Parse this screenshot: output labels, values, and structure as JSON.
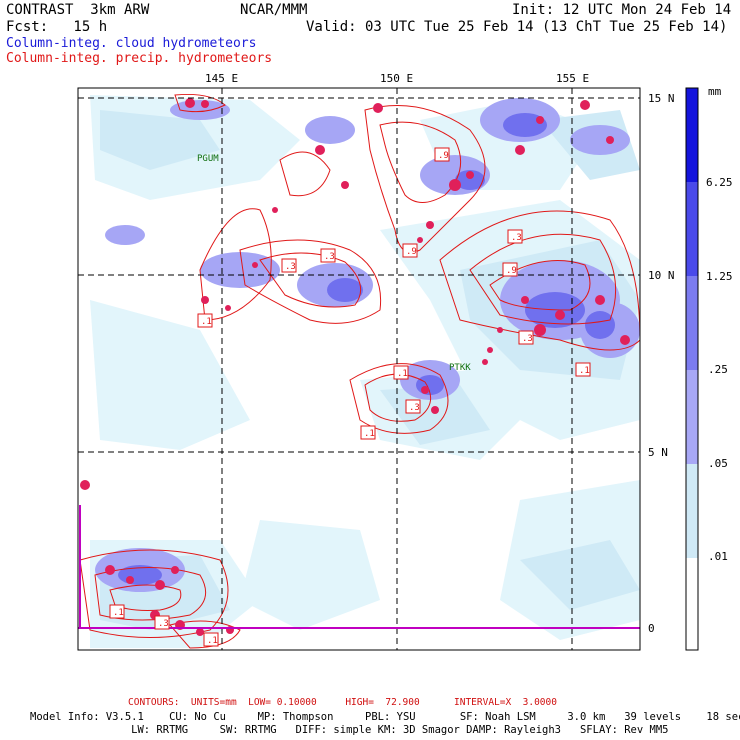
{
  "header": {
    "model": "CONTRAST  3km ARW",
    "org": "NCAR/MMM",
    "init": "Init: 12 UTC Mon 24 Feb 14",
    "fcst": "Fcst:   15 h",
    "valid": "Valid: 03 UTC Tue 25 Feb 14 (13 ChT Tue 25 Feb 14)"
  },
  "legend": {
    "cloud": "Column-integ. cloud hydrometeors",
    "precip": "Column-integ. precip. hydrometeors"
  },
  "axes": {
    "lon_ticks": [
      "145 E",
      "150 E",
      "155 E"
    ],
    "lat_ticks": [
      "15 N",
      "10 N",
      "5 N",
      "0"
    ]
  },
  "colorbar": {
    "units": "mm",
    "labels": [
      "6.25",
      "1.25",
      ".25",
      ".05",
      ".01"
    ],
    "colors": [
      "#1414dc",
      "#4a4aea",
      "#7c7cf0",
      "#a8a8f6",
      "#cfe9f6",
      "#e8f8fc",
      "#ffffff"
    ]
  },
  "stations": [
    "PGUM",
    "PTKK"
  ],
  "contour_labels": [
    ".1",
    ".3",
    ".9"
  ],
  "footer": {
    "contours": "CONTOURS:  UNITS=mm  LOW= 0.10000     HIGH=  72.900      INTERVAL=X  3.0000",
    "model_info": "Model Info: V3.5.1    CU: No Cu     MP: Thompson     PBL: YSU       SF: Noah LSM     3.0 km   39 levels    18 sec",
    "model_info2": "                LW: RRTMG     SW: RRTMG   DIFF: simple KM: 3D Smagor DAMP: Rayleigh3   SFLAY: Rev MM5"
  },
  "colors": {
    "cloud": "#6a6aee",
    "precip": "#e01818",
    "grid": "#000000",
    "equator": "#c000c0"
  }
}
